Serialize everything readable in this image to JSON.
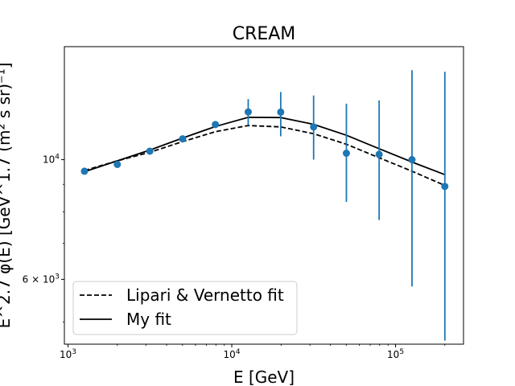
{
  "chart_data": {
    "type": "line",
    "title": "CREAM",
    "xlabel": "E [GeV]",
    "ylabel": "E^2.7 φ(E) [GeV^1.7 (m² s sr)⁻¹]",
    "xscale": "log",
    "yscale": "log",
    "xlim": [
      950,
      260000
    ],
    "ylim": [
      4550,
      16200
    ],
    "x_ticks": [
      {
        "value": 1000,
        "base": "10",
        "exp": "3"
      },
      {
        "value": 10000,
        "base": "10",
        "exp": "4"
      },
      {
        "value": 100000,
        "base": "10",
        "exp": "5"
      }
    ],
    "y_ticks": [
      {
        "value": 10000,
        "base": "10",
        "exp": "4",
        "prefix": ""
      },
      {
        "value": 6000,
        "base": "10",
        "exp": "3",
        "prefix": "6 × "
      }
    ],
    "measurements": {
      "color": "#1f77b4",
      "x": [
        1260,
        2000,
        3160,
        5010,
        7940,
        12600,
        19900,
        31600,
        50100,
        79400,
        126000,
        200000
      ],
      "y": [
        9520,
        9800,
        10370,
        10930,
        11620,
        12260,
        12250,
        11500,
        10280,
        10230,
        10000,
        8920
      ],
      "yerr_low": [
        9480,
        9760,
        10310,
        10800,
        11550,
        11580,
        11050,
        10000,
        8350,
        7730,
        5820,
        4620
      ],
      "yerr_high": [
        9580,
        9860,
        10450,
        11050,
        11720,
        12950,
        13350,
        13150,
        12700,
        12880,
        14650,
        14550
      ]
    },
    "series": [
      {
        "name": "Lipari & Vernetto fit",
        "style": "dashed",
        "color": "#000000",
        "x": [
          1260,
          2000,
          3160,
          5010,
          7940,
          12600,
          19900,
          31600,
          50100,
          79400,
          126000,
          200000
        ],
        "y": [
          9550,
          9950,
          10320,
          10800,
          11270,
          11570,
          11500,
          11170,
          10680,
          10080,
          9520,
          8960
        ]
      },
      {
        "name": "My fit",
        "style": "solid",
        "color": "#000000",
        "x": [
          1260,
          2000,
          3160,
          5010,
          7940,
          12600,
          19900,
          31600,
          50100,
          79400,
          126000,
          200000
        ],
        "y": [
          9500,
          9950,
          10420,
          10970,
          11520,
          11980,
          11970,
          11630,
          11100,
          10480,
          9900,
          9380
        ]
      }
    ],
    "legend": {
      "placement": "lower-left"
    },
    "grid": false
  }
}
